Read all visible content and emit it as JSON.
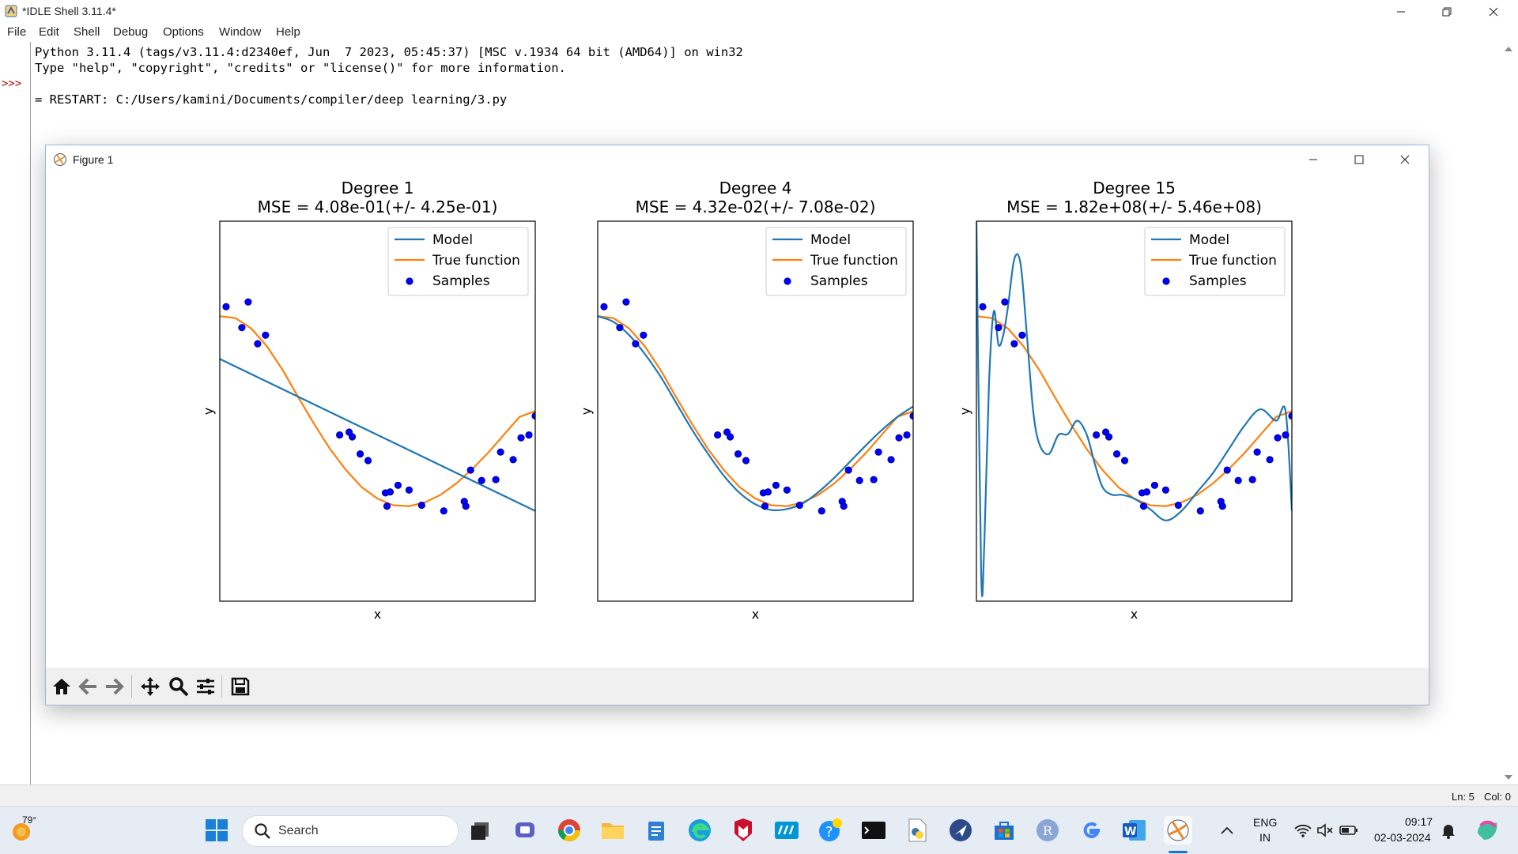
{
  "window": {
    "title": "*IDLE Shell 3.11.4*"
  },
  "menu": [
    "File",
    "Edit",
    "Shell",
    "Debug",
    "Options",
    "Window",
    "Help"
  ],
  "shell": {
    "prompt": ">>>",
    "lines": [
      "Python 3.11.4 (tags/v3.11.4:d2340ef, Jun  7 2023, 05:45:37) [MSC v.1934 64 bit (AMD64)] on win32",
      "Type \"help\", \"copyright\", \"credits\" or \"license()\" for more information.",
      "= RESTART: C:/Users/kamini/Documents/compiler/deep learning/3.py"
    ]
  },
  "status": {
    "line": "Ln: 5",
    "col": "Col: 0"
  },
  "figure": {
    "title": "Figure 1",
    "toolbar_icons": [
      "home-icon",
      "back-arrow-icon",
      "forward-arrow-icon",
      "pan-icon",
      "zoom-icon",
      "configure-subplots-icon",
      "save-icon"
    ]
  },
  "colors": {
    "model": "#1f77b4",
    "true_function": "#ff7f0e",
    "samples": "#0000ff",
    "prompt": "#c00000"
  },
  "chart_data": [
    {
      "type": "line",
      "title": "Degree 1",
      "subtitle": "MSE = 4.08e-01(+/- 4.25e-01)",
      "xlabel": "x",
      "ylabel": "y",
      "xlim": [
        0,
        1
      ],
      "ylim": [
        -2,
        2
      ],
      "legend": [
        "Model",
        "True function",
        "Samples"
      ],
      "legend_position": "top-right",
      "model_line": {
        "x": [
          0,
          1
        ],
        "y": [
          0.55,
          -1.05
        ]
      }
    },
    {
      "type": "line",
      "title": "Degree 4",
      "subtitle": "MSE = 4.32e-02(+/- 7.08e-02)",
      "xlabel": "x",
      "ylabel": "y",
      "xlim": [
        0,
        1
      ],
      "ylim": [
        -2,
        2
      ],
      "legend": [
        "Model",
        "True function",
        "Samples"
      ],
      "legend_position": "top-right",
      "model_line": {
        "x": [
          0.0,
          0.05,
          0.1,
          0.15,
          0.2,
          0.25,
          0.3,
          0.35,
          0.4,
          0.45,
          0.5,
          0.55,
          0.6,
          0.65,
          0.7,
          0.75,
          0.8,
          0.85,
          0.9,
          0.95,
          1.0
        ],
        "y": [
          1.0,
          0.94,
          0.8,
          0.6,
          0.36,
          0.08,
          -0.2,
          -0.45,
          -0.68,
          -0.86,
          -0.98,
          -1.04,
          -1.03,
          -0.97,
          -0.85,
          -0.7,
          -0.53,
          -0.36,
          -0.2,
          -0.06,
          0.05
        ]
      }
    },
    {
      "type": "line",
      "title": "Degree 15",
      "subtitle": "MSE = 1.82e+08(+/- 5.46e+08)",
      "xlabel": "x",
      "ylabel": "y",
      "xlim": [
        0,
        1
      ],
      "ylim": [
        -2,
        2
      ],
      "legend": [
        "Model",
        "True function",
        "Samples"
      ],
      "legend_position": "top-right",
      "model_line": {
        "x": [
          0.0,
          0.015,
          0.025,
          0.04,
          0.055,
          0.07,
          0.085,
          0.1,
          0.12,
          0.14,
          0.16,
          0.18,
          0.2,
          0.23,
          0.26,
          0.29,
          0.32,
          0.35,
          0.375,
          0.4,
          0.43,
          0.46,
          0.5,
          0.55,
          0.6,
          0.65,
          0.7,
          0.75,
          0.8,
          0.85,
          0.9,
          0.95,
          0.98,
          1.0
        ],
        "y": [
          2.0,
          -1.7,
          -1.4,
          0.3,
          1.05,
          0.7,
          0.8,
          1.1,
          1.6,
          1.55,
          0.8,
          0.0,
          -0.35,
          -0.45,
          -0.25,
          -0.24,
          -0.1,
          -0.25,
          -0.55,
          -0.8,
          -0.88,
          -0.88,
          -0.92,
          -1.03,
          -1.15,
          -1.05,
          -0.85,
          -0.65,
          -0.4,
          -0.15,
          0.02,
          -0.1,
          0.0,
          -1.05
        ]
      }
    }
  ],
  "samples": {
    "x": [
      0.02,
      0.07,
      0.09,
      0.12,
      0.145,
      0.38,
      0.41,
      0.42,
      0.445,
      0.47,
      0.525,
      0.53,
      0.54,
      0.565,
      0.6,
      0.64,
      0.71,
      0.775,
      0.78,
      0.795,
      0.83,
      0.875,
      0.89,
      0.93,
      0.955,
      0.98,
      1.0
    ],
    "y": [
      1.1,
      0.88,
      1.15,
      0.71,
      0.8,
      -0.25,
      -0.22,
      -0.27,
      -0.45,
      -0.52,
      -0.86,
      -1.0,
      -0.85,
      -0.78,
      -0.83,
      -0.99,
      -1.05,
      -0.95,
      -1.0,
      -0.62,
      -0.73,
      -0.72,
      -0.43,
      -0.51,
      -0.28,
      -0.25,
      -0.05
    ]
  },
  "true_function": {
    "x": [
      0.0,
      0.05,
      0.1,
      0.15,
      0.2,
      0.25,
      0.3,
      0.35,
      0.4,
      0.45,
      0.5,
      0.55,
      0.6,
      0.65,
      0.7,
      0.75,
      0.8,
      0.85,
      0.9,
      0.95,
      1.0
    ],
    "y": [
      1.0,
      0.98,
      0.87,
      0.68,
      0.43,
      0.14,
      -0.14,
      -0.4,
      -0.62,
      -0.8,
      -0.92,
      -0.99,
      -1.0,
      -0.96,
      -0.88,
      -0.76,
      -0.61,
      -0.44,
      -0.25,
      -0.06,
      0.0
    ]
  },
  "taskbar": {
    "weather": "79°",
    "search_placeholder": "Search",
    "lang_top": "ENG",
    "lang_bottom": "IN",
    "time": "09:17",
    "date": "02-03-2024"
  }
}
